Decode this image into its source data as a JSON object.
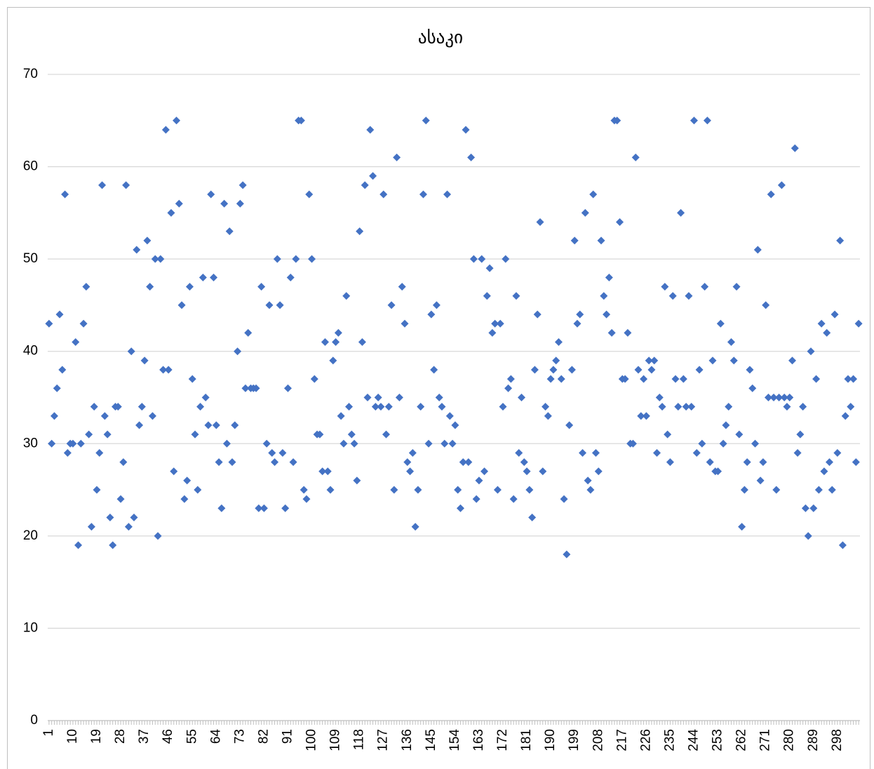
{
  "chart_data": {
    "type": "line",
    "title": "ასაკი",
    "color": "#4472c4",
    "marker": "diamond",
    "grid": true,
    "ylim": [
      0,
      70
    ],
    "yticks": [
      0,
      10,
      20,
      30,
      40,
      50,
      60,
      70
    ],
    "categories": [
      "1",
      null,
      null,
      null,
      null,
      null,
      null,
      null,
      null,
      "10",
      null,
      null,
      null,
      null,
      null,
      null,
      null,
      null,
      "19",
      null,
      null,
      null,
      null,
      null,
      null,
      null,
      null,
      "28",
      null,
      null,
      null,
      null,
      null,
      null,
      null,
      null,
      "37",
      null,
      null,
      null,
      null,
      null,
      null,
      null,
      null,
      "46",
      null,
      null,
      null,
      null,
      null,
      null,
      null,
      null,
      "55",
      null,
      null,
      null,
      null,
      null,
      null,
      null,
      null,
      "64",
      null,
      null,
      null,
      null,
      null,
      null,
      null,
      null,
      "73",
      null,
      null,
      null,
      null,
      null,
      null,
      null,
      null,
      "82",
      null,
      null,
      null,
      null,
      null,
      null,
      null,
      null,
      "91",
      null,
      null,
      null,
      null,
      null,
      null,
      null,
      null,
      "100",
      null,
      null,
      null,
      null,
      null,
      null,
      null,
      null,
      "109",
      null,
      null,
      null,
      null,
      null,
      null,
      null,
      null,
      "118",
      null,
      null,
      null,
      null,
      null,
      null,
      null,
      null,
      "127",
      null,
      null,
      null,
      null,
      null,
      null,
      null,
      null,
      "136",
      null,
      null,
      null,
      null,
      null,
      null,
      null,
      null,
      "145",
      null,
      null,
      null,
      null,
      null,
      null,
      null,
      null,
      "154",
      null,
      null,
      null,
      null,
      null,
      null,
      null,
      null,
      "163",
      null,
      null,
      null,
      null,
      null,
      null,
      null,
      null,
      "172",
      null,
      null,
      null,
      null,
      null,
      null,
      null,
      null,
      "181",
      null,
      null,
      null,
      null,
      null,
      null,
      null,
      null,
      "190",
      null,
      null,
      null,
      null,
      null,
      null,
      null,
      null,
      "199",
      null,
      null,
      null,
      null,
      null,
      null,
      null,
      null,
      "208",
      null,
      null,
      null,
      null,
      null,
      null,
      null,
      null,
      "217",
      null,
      null,
      null,
      null,
      null,
      null,
      null,
      null,
      "226",
      null,
      null,
      null,
      null,
      null,
      null,
      null,
      null,
      "235",
      null,
      null,
      null,
      null,
      null,
      null,
      null,
      null,
      "244",
      null,
      null,
      null,
      null,
      null,
      null,
      null,
      null,
      "253",
      null,
      null,
      null,
      null,
      null,
      null,
      null,
      null,
      "262",
      null,
      null,
      null,
      null,
      null,
      null,
      null,
      null,
      "271",
      null,
      null,
      null,
      null,
      null,
      null,
      null,
      null,
      "280",
      null,
      null,
      null,
      null,
      null,
      null,
      null,
      null,
      "289",
      null,
      null,
      null,
      null,
      null,
      null,
      null,
      null,
      "298",
      null,
      null,
      null,
      null,
      null,
      null,
      null,
      null
    ],
    "values": [
      43,
      30,
      33,
      36,
      44,
      38,
      57,
      29,
      30,
      30,
      41,
      19,
      30,
      43,
      47,
      31,
      21,
      34,
      25,
      29,
      58,
      33,
      31,
      22,
      19,
      34,
      34,
      24,
      28,
      58,
      21,
      40,
      22,
      51,
      32,
      34,
      39,
      52,
      47,
      33,
      50,
      20,
      50,
      38,
      64,
      38,
      55,
      27,
      65,
      56,
      45,
      24,
      26,
      47,
      37,
      31,
      25,
      34,
      48,
      35,
      32,
      57,
      48,
      32,
      28,
      23,
      56,
      30,
      53,
      28,
      32,
      40,
      56,
      58,
      36,
      42,
      36,
      36,
      36,
      23,
      47,
      23,
      30,
      45,
      29,
      28,
      50,
      45,
      29,
      23,
      36,
      48,
      28,
      50,
      65,
      65,
      25,
      24,
      57,
      50,
      37,
      31,
      31,
      27,
      41,
      27,
      25,
      39,
      41,
      42,
      33,
      30,
      46,
      34,
      31,
      30,
      26,
      53,
      41,
      58,
      35,
      64,
      59,
      34,
      35,
      34,
      57,
      31,
      34,
      45,
      25,
      61,
      35,
      47,
      43,
      28,
      27,
      29,
      21,
      25,
      34,
      57,
      65,
      30,
      44,
      38,
      45,
      35,
      34,
      30,
      57,
      33,
      30,
      32,
      25,
      23,
      28,
      64,
      28,
      61,
      50,
      24,
      26,
      50,
      27,
      46,
      49,
      42,
      43,
      25,
      43,
      34,
      50,
      36,
      37,
      24,
      46,
      29,
      35,
      28,
      27,
      25,
      22,
      38,
      44,
      54,
      27,
      34,
      33,
      37,
      38,
      39,
      41,
      37,
      24,
      18,
      32,
      38,
      52,
      43,
      44,
      29,
      55,
      26,
      25,
      57,
      29,
      27,
      52,
      46,
      44,
      48,
      42,
      65,
      65,
      54,
      37,
      37,
      42,
      30,
      30,
      61,
      38,
      33,
      37,
      33,
      39,
      38,
      39,
      29,
      35,
      34,
      47,
      31,
      28,
      46,
      37,
      34,
      55,
      37,
      34,
      46,
      34,
      65,
      29,
      38,
      30,
      47,
      65,
      28,
      39,
      27,
      27,
      43,
      30,
      32,
      34,
      41,
      39,
      47,
      31,
      21,
      25,
      28,
      38,
      36,
      30,
      51,
      26,
      28,
      45,
      35,
      57,
      35,
      25,
      35,
      58,
      35,
      34,
      35,
      39,
      62,
      29,
      31,
      34,
      23,
      20,
      40,
      23,
      37,
      25,
      43,
      27,
      42,
      28,
      25,
      44,
      29,
      52,
      19,
      33,
      37,
      34,
      37,
      28,
      43
    ]
  }
}
